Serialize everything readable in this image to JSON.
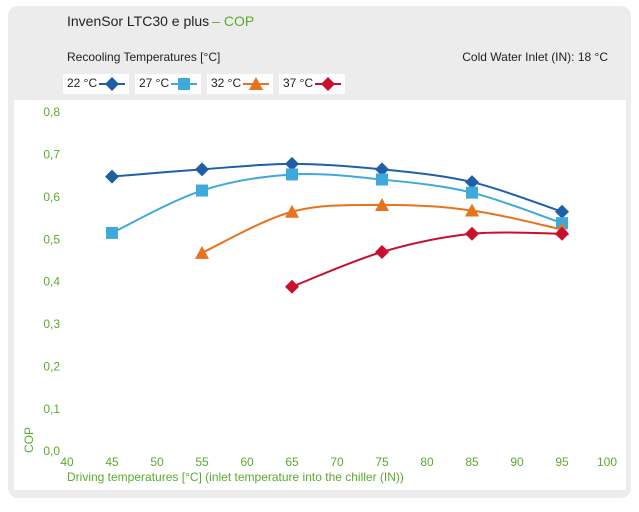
{
  "chart_data": {
    "type": "line",
    "title": "InvenSor LTC30 e plus",
    "title_suffix": "– COP",
    "subtitle": "Recooling Temperatures [°C]",
    "annotation": "Cold Water Inlet (IN): 18 °C",
    "x_label": "Driving temperatures [°C] (inlet temperature into the chiller (IN))",
    "y_label": "COP",
    "xlim": [
      40,
      100
    ],
    "xticks": [
      40,
      45,
      50,
      55,
      60,
      65,
      70,
      75,
      80,
      85,
      90,
      95,
      100
    ],
    "ylim": [
      0,
      0.8
    ],
    "yticks": [
      {
        "value": 0,
        "label": "0,0"
      },
      {
        "value": 0.1,
        "label": "0,1"
      },
      {
        "value": 0.2,
        "label": "0,2"
      },
      {
        "value": 0.3,
        "label": "0,3"
      },
      {
        "value": 0.4,
        "label": "0,4"
      },
      {
        "value": 0.5,
        "label": "0,5"
      },
      {
        "value": 0.6,
        "label": "0,6"
      },
      {
        "value": 0.7,
        "label": "0,7"
      },
      {
        "value": 0.8,
        "label": "0,8"
      }
    ],
    "grid": false,
    "smooth": true,
    "series": [
      {
        "name": "22 °C",
        "color": "#1f5fa6",
        "marker": "diamond",
        "x": [
          45,
          55,
          65,
          75,
          85,
          95
        ],
        "values": [
          0.65,
          0.667,
          0.68,
          0.667,
          0.637,
          0.567
        ]
      },
      {
        "name": "27 °C",
        "color": "#3fa9dc",
        "marker": "square",
        "x": [
          45,
          55,
          65,
          75,
          85,
          95
        ],
        "values": [
          0.517,
          0.617,
          0.655,
          0.643,
          0.612,
          0.54
        ]
      },
      {
        "name": "32 °C",
        "color": "#e8731e",
        "marker": "triangle",
        "x": [
          55,
          65,
          75,
          85,
          95
        ],
        "values": [
          0.47,
          0.567,
          0.583,
          0.57,
          0.525
        ]
      },
      {
        "name": "37 °C",
        "color": "#c8102e",
        "marker": "diamond",
        "x": [
          65,
          75,
          85,
          95
        ],
        "values": [
          0.39,
          0.472,
          0.515,
          0.515
        ]
      }
    ]
  }
}
